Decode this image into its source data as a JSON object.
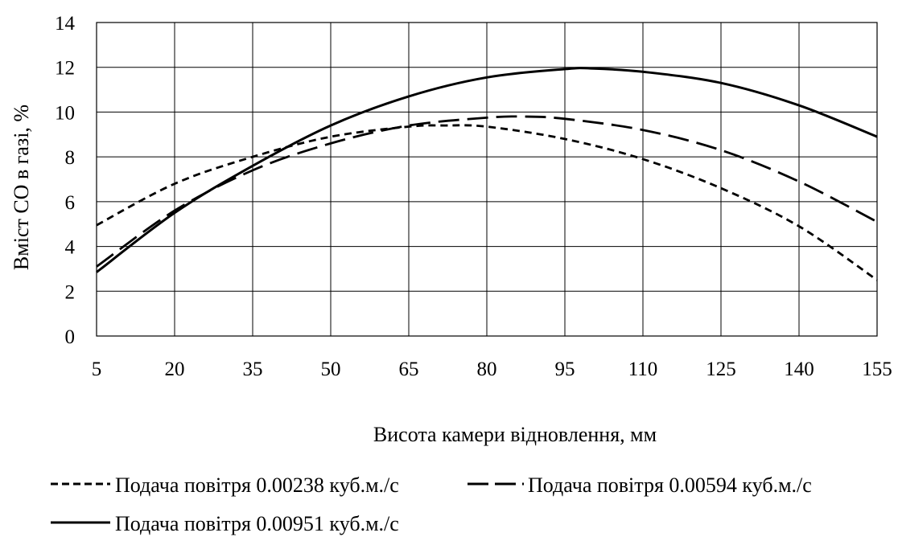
{
  "chart_data": {
    "type": "line",
    "xlabel": "Висота камери відновлення, мм",
    "ylabel": "Вміст CO в газі, %",
    "x_ticks": [
      "5",
      "20",
      "35",
      "50",
      "65",
      "80",
      "95",
      "110",
      "125",
      "140",
      "155"
    ],
    "y_ticks": [
      "0",
      "2",
      "4",
      "6",
      "8",
      "10",
      "12",
      "14"
    ],
    "xlim": [
      5,
      155
    ],
    "ylim": [
      0,
      14
    ],
    "grid": true,
    "legend_position": "bottom",
    "series": [
      {
        "name": "Подача повітря 0.00238 куб.м./с",
        "style": "short-dash",
        "x": [
          5,
          20,
          35,
          50,
          65,
          72,
          80,
          95,
          110,
          125,
          140,
          155
        ],
        "y": [
          4.95,
          6.8,
          8.0,
          8.9,
          9.35,
          9.4,
          9.35,
          8.8,
          7.9,
          6.6,
          4.9,
          2.5
        ]
      },
      {
        "name": "Подача повітря 0.00594 куб.м./с",
        "style": "long-dash",
        "x": [
          5,
          20,
          35,
          50,
          65,
          80,
          87,
          95,
          110,
          125,
          140,
          155
        ],
        "y": [
          3.1,
          5.6,
          7.4,
          8.6,
          9.4,
          9.75,
          9.8,
          9.7,
          9.2,
          8.3,
          6.9,
          5.1
        ]
      },
      {
        "name": "Подача повітря 0.00951 куб.м./с",
        "style": "solid",
        "x": [
          5,
          20,
          35,
          50,
          65,
          80,
          95,
          100,
          110,
          125,
          140,
          155
        ],
        "y": [
          2.85,
          5.5,
          7.6,
          9.4,
          10.7,
          11.55,
          11.92,
          11.95,
          11.8,
          11.3,
          10.3,
          8.9
        ]
      }
    ]
  }
}
